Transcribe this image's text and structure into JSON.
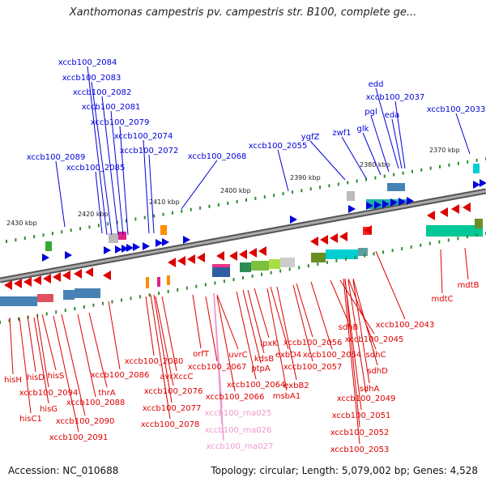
{
  "title": "Xanthomonas campestris pv. campestris str. B100, complete ge...",
  "accession_text": "Accession: NC_010688",
  "summary_text": "Topology: circular; Length: 5,079,002 bp; Genes: 4,528",
  "colors": {
    "forward_gene": "#0000dd",
    "reverse_gene": "#dd0000",
    "rna": "#ee99cc",
    "backbone": "#808080",
    "tick": "#2e8b2e"
  },
  "scale_labels": [
    "2370 kbp",
    "2380 kbp",
    "2390 kbp",
    "2400 kbp",
    "2410 kbp",
    "2420 kbp",
    "2430 kbp"
  ],
  "forward_labels": [
    "xccb100_2084",
    "xccb100_2083",
    "xccb100_2082",
    "xccb100_2081",
    "xccb100_2079",
    "xccb100_2074",
    "xccb100_2072",
    "xccb100_2089",
    "xccb100_2085",
    "xccb100_2068",
    "xccb100_2055",
    "ygfZ",
    "zwf1",
    "glk",
    "pgl",
    "edd",
    "xccb100_2037",
    "eda",
    "xccb100_2033"
  ],
  "reverse_labels": [
    "hisH",
    "hisD",
    "hisS",
    "xccb100_2094",
    "hisG",
    "hisC1",
    "xccb100_2090",
    "xccb100_2091",
    "thrA",
    "xccb100_2088",
    "xccb100_2086",
    "xccb100_2080",
    "avrXccC",
    "xccb100_2076",
    "xccb100_2077",
    "xccb100_2078",
    "orfT",
    "uvrC",
    "xccb100_2067",
    "xccb100_2066",
    "ptpA",
    "kdsB",
    "lpxK",
    "xccb100_2064",
    "exbD4",
    "msbA1",
    "exbB2",
    "xccb100_2057",
    "xccb100_2056",
    "xccb100_2054",
    "sdhB",
    "xccb100_2045",
    "sdhC",
    "sdhD",
    "sdhA",
    "xccb100_2049",
    "xccb100_2051",
    "xccb100_2052",
    "xccb100_2053",
    "xccb100_2043",
    "mdtC",
    "mdtB"
  ],
  "rna_labels": [
    "xccb100_rna025",
    "xccb100_rna026",
    "xccb100_rna027"
  ]
}
